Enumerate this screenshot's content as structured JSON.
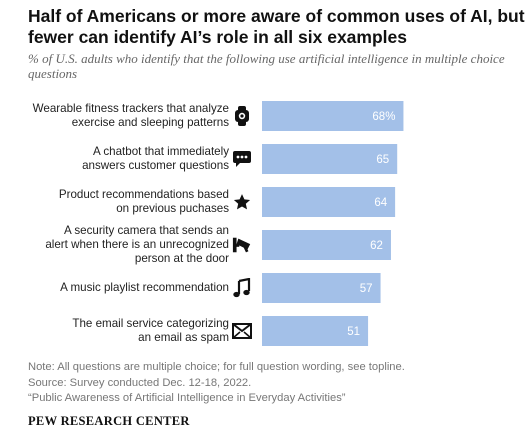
{
  "title": "Half of Americans or more aware of common uses of AI, but fewer can identify AI’s role in all six examples",
  "subtitle": "% of U.S. adults who identify that the following use artificial intelligence in multiple choice questions",
  "chart_data": {
    "type": "bar",
    "orientation": "horizontal",
    "categories": [
      "Wearable fitness trackers that analyze\nexercise and sleeping patterns",
      "A chatbot that immediately\nanswers customer questions",
      "Product recommendations based\non previous puchases",
      "A security camera that sends an\nalert when there is an unrecognized\nperson at the door",
      "A music playlist recommendation",
      "The email service categorizing\nan email as spam"
    ],
    "values": [
      68,
      65,
      64,
      62,
      57,
      51
    ],
    "value_labels": [
      "68%",
      "65",
      "64",
      "62",
      "57",
      "51"
    ],
    "icons": [
      "fitness-tracker-icon",
      "chat-bubble-icon",
      "star-icon",
      "security-camera-icon",
      "music-note-icon",
      "envelope-icon"
    ],
    "xlim": [
      0,
      100
    ],
    "bar_color": "#a3c0e8",
    "label_color": "#ffffff",
    "grid": false,
    "legend": "none"
  },
  "footer": {
    "note": "Note: All questions are multiple choice; for full question wording, see topline.",
    "source": "Source: Survey conducted Dec. 12-18, 2022.",
    "report": "“Public Awareness of Artificial Intelligence in Everyday Activities”",
    "brand": "PEW RESEARCH CENTER"
  }
}
